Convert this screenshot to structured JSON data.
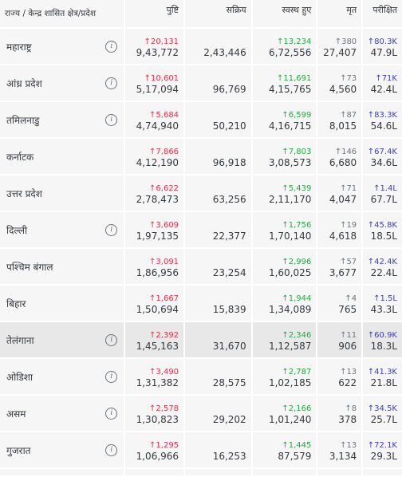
{
  "header": {
    "state": "राज्य / केन्द्र शासित क्षेत्र/प्रदेश",
    "confirmed": "पुष्टि",
    "active": "सक्रिय",
    "recovered": "स्वस्थ हुए",
    "deceased": "मृत",
    "tested": "परीक्षित"
  },
  "icons": {
    "info": "info-icon",
    "arrow": "arrow-up-icon"
  },
  "colors": {
    "confirmed": "#e0314a",
    "recovered": "#28a745",
    "deceased": "#6c757d",
    "tested": "#3f3fb0"
  },
  "rows": [
    {
      "state": "महाराष्ट्र",
      "info": "i",
      "conf_delta": "↑20,131",
      "confirmed": "9,43,772",
      "active": "2,43,446",
      "rec_delta": "↑13,234",
      "recovered": "6,72,556",
      "dec_delta": "↑380",
      "deceased": "27,407",
      "test_delta": "↑80.3K",
      "tested": "47.9L"
    },
    {
      "state": "आंध्र प्रदेश",
      "info": "i",
      "conf_delta": "↑10,601",
      "confirmed": "5,17,094",
      "active": "96,769",
      "rec_delta": "↑11,691",
      "recovered": "4,15,765",
      "dec_delta": "↑73",
      "deceased": "4,560",
      "test_delta": "↑71K",
      "tested": "42.4L"
    },
    {
      "state": "तमिलनाडु",
      "info": "i",
      "conf_delta": "↑5,684",
      "confirmed": "4,74,940",
      "active": "50,210",
      "rec_delta": "↑6,599",
      "recovered": "4,16,715",
      "dec_delta": "↑87",
      "deceased": "8,015",
      "test_delta": "↑83.3K",
      "tested": "54.6L"
    },
    {
      "state": "कर्नाटक",
      "info": "",
      "conf_delta": "↑7,866",
      "confirmed": "4,12,190",
      "active": "96,918",
      "rec_delta": "↑7,803",
      "recovered": "3,08,573",
      "dec_delta": "↑146",
      "deceased": "6,680",
      "test_delta": "↑67.4K",
      "tested": "34.6L"
    },
    {
      "state": "उत्तर प्रदेश",
      "info": "",
      "conf_delta": "↑6,622",
      "confirmed": "2,78,473",
      "active": "63,256",
      "rec_delta": "↑5,439",
      "recovered": "2,11,170",
      "dec_delta": "↑71",
      "deceased": "4,047",
      "test_delta": "↑1.4L",
      "tested": "67.7L"
    },
    {
      "state": "दिल्ली",
      "info": "i",
      "conf_delta": "↑3,609",
      "confirmed": "1,97,135",
      "active": "22,377",
      "rec_delta": "↑1,756",
      "recovered": "1,70,140",
      "dec_delta": "↑19",
      "deceased": "4,618",
      "test_delta": "↑45.8K",
      "tested": "18.5L"
    },
    {
      "state": "पश्चिम बंगाल",
      "info": "",
      "conf_delta": "↑3,091",
      "confirmed": "1,86,956",
      "active": "23,254",
      "rec_delta": "↑2,996",
      "recovered": "1,60,025",
      "dec_delta": "↑57",
      "deceased": "3,677",
      "test_delta": "↑42.4K",
      "tested": "22.4L"
    },
    {
      "state": "बिहार",
      "info": "",
      "conf_delta": "↑1,667",
      "confirmed": "1,50,694",
      "active": "15,839",
      "rec_delta": "↑1,944",
      "recovered": "1,34,089",
      "dec_delta": "↑4",
      "deceased": "765",
      "test_delta": "↑1.5L",
      "tested": "43.3L"
    },
    {
      "state": "तेलंगाना",
      "info": "i",
      "conf_delta": "↑2,392",
      "confirmed": "1,45,163",
      "active": "31,670",
      "rec_delta": "↑2,346",
      "recovered": "1,12,587",
      "dec_delta": "↑11",
      "deceased": "906",
      "test_delta": "↑60.9K",
      "tested": "18.3L",
      "highlight": true
    },
    {
      "state": "ओडिशा",
      "info": "i",
      "conf_delta": "↑3,490",
      "confirmed": "1,31,382",
      "active": "28,575",
      "rec_delta": "↑2,787",
      "recovered": "1,02,185",
      "dec_delta": "↑13",
      "deceased": "622",
      "test_delta": "↑41.3K",
      "tested": "21.8L"
    },
    {
      "state": "असम",
      "info": "i",
      "conf_delta": "↑2,578",
      "confirmed": "1,30,823",
      "active": "29,202",
      "rec_delta": "↑2,166",
      "recovered": "1,01,240",
      "dec_delta": "↑8",
      "deceased": "378",
      "test_delta": "↑34.5K",
      "tested": "25.7L"
    },
    {
      "state": "गुजरात",
      "info": "i",
      "conf_delta": "↑1,295",
      "confirmed": "1,06,966",
      "active": "16,253",
      "rec_delta": "↑1,445",
      "recovered": "87,579",
      "dec_delta": "↑13",
      "deceased": "3,134",
      "test_delta": "↑72.1K",
      "tested": "29.3L"
    }
  ]
}
